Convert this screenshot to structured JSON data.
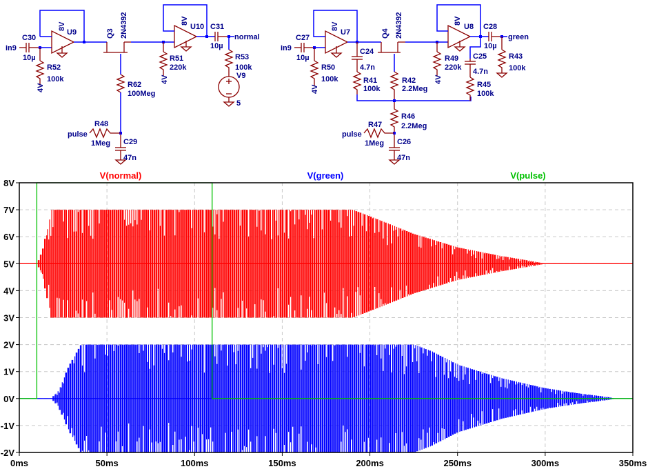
{
  "schematic": {
    "left": {
      "input_net": "in9",
      "C30": {
        "ref": "C30",
        "value": "10µ"
      },
      "R52": {
        "ref": "R52",
        "value": "100k",
        "bias": "4V"
      },
      "U9": {
        "ref": "U9",
        "supply": "8V"
      },
      "Q3": {
        "ref": "Q3",
        "model": "2N4392"
      },
      "R62": {
        "ref": "R62",
        "value": "100Meg"
      },
      "R48": {
        "ref": "R48",
        "value": "1Meg",
        "input_net": "pulse"
      },
      "C29": {
        "ref": "C29",
        "value": "47n"
      },
      "R51": {
        "ref": "R51",
        "value": "220k",
        "bias": "4V"
      },
      "U10": {
        "ref": "U10",
        "supply": "8V"
      },
      "C31": {
        "ref": "C31",
        "value": "10µ"
      },
      "output_net": "normal",
      "R53": {
        "ref": "R53",
        "value": "100k"
      },
      "V9": {
        "ref": "V9",
        "value": "5"
      }
    },
    "right": {
      "input_net": "in9",
      "C27": {
        "ref": "C27",
        "value": "10µ"
      },
      "R50": {
        "ref": "R50",
        "value": "100k",
        "bias": "4V"
      },
      "U7": {
        "ref": "U7",
        "supply": "8V"
      },
      "C24": {
        "ref": "C24",
        "value": "4.7n"
      },
      "R41": {
        "ref": "R41",
        "value": "100k"
      },
      "Q4": {
        "ref": "Q4",
        "model": "2N4392"
      },
      "R42": {
        "ref": "R42",
        "value": "2.2Meg"
      },
      "R46": {
        "ref": "R46",
        "value": "2.2Meg"
      },
      "R47": {
        "ref": "R47",
        "value": "1Meg",
        "input_net": "pulse"
      },
      "C26": {
        "ref": "C26",
        "value": "47n"
      },
      "R49": {
        "ref": "R49",
        "value": "220k",
        "bias": "4V"
      },
      "U8": {
        "ref": "U8",
        "supply": "8V"
      },
      "C25": {
        "ref": "C25",
        "value": "4.7n"
      },
      "R45": {
        "ref": "R45",
        "value": "100k"
      },
      "C28": {
        "ref": "C28",
        "value": "10µ"
      },
      "output_net": "green",
      "R43": {
        "ref": "R43",
        "value": "100k"
      }
    }
  },
  "chart_data": {
    "type": "line",
    "title": "",
    "xlabel": "",
    "ylabel": "",
    "xlim": [
      0,
      350
    ],
    "ylim": [
      -2,
      8
    ],
    "x_unit": "ms",
    "y_unit": "V",
    "grid": true,
    "x_ticks": [
      "0ms",
      "50ms",
      "100ms",
      "150ms",
      "200ms",
      "250ms",
      "300ms",
      "350ms"
    ],
    "y_ticks": [
      "8V",
      "7V",
      "6V",
      "5V",
      "4V",
      "3V",
      "2V",
      "1V",
      "0V",
      "-1V",
      "-2V"
    ],
    "series": [
      {
        "name": "V(normal)",
        "color": "#ff0000",
        "kind": "burst-envelope",
        "center": 5,
        "envelope": {
          "t_ms": [
            0,
            10,
            13,
            18,
            190,
            200,
            225,
            250,
            275,
            290,
            300,
            350
          ],
          "amplitude_v": [
            0,
            0,
            0.5,
            2,
            2,
            1.75,
            1.1,
            0.6,
            0.28,
            0.12,
            0,
            0
          ]
        }
      },
      {
        "name": "V(green)",
        "color": "#0000ff",
        "kind": "burst-envelope",
        "center": 0,
        "envelope": {
          "t_ms": [
            0,
            18,
            22,
            28,
            35,
            225,
            235,
            250,
            275,
            300,
            320,
            335,
            340,
            350
          ],
          "amplitude_v": [
            0,
            0,
            0.3,
            1.2,
            2,
            2,
            1.75,
            1.25,
            0.75,
            0.38,
            0.18,
            0.06,
            0,
            0
          ]
        }
      },
      {
        "name": "V(pulse)",
        "color": "#00c000",
        "kind": "step",
        "t_ms": [
          0,
          10,
          10,
          110,
          110,
          350
        ],
        "v": [
          0,
          0,
          8,
          8,
          0,
          0
        ]
      }
    ],
    "legend": [
      "V(normal)",
      "V(green)",
      "V(pulse)"
    ],
    "legend_placement": "top"
  }
}
